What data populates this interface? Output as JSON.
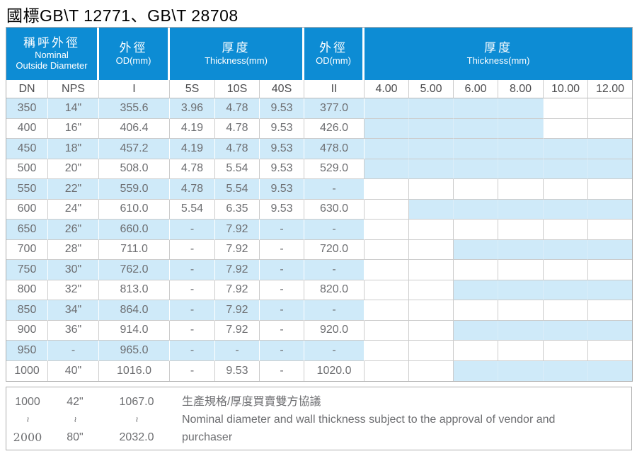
{
  "title": "國標GB\\T 12771、GB\\T 28708",
  "colors": {
    "header_blue": "#0d8cd4",
    "stripe_blue": "#cfeaf9",
    "grid_gray": "#cccccc",
    "text_gray": "#6d6e71"
  },
  "header": {
    "nominal_zh": "稱呼外徑",
    "nominal_en1": "Nominal",
    "nominal_en2": "Outside Diameter",
    "od1_zh": "外徑",
    "od1_en": "OD(mm)",
    "th1_zh": "厚度",
    "th1_en": "Thickness(mm)",
    "od2_zh": "外徑",
    "od2_en": "OD(mm)",
    "th2_zh": "厚度",
    "th2_en": "Thickness(mm)"
  },
  "subheader": [
    "DN",
    "NPS",
    "I",
    "5S",
    "10S",
    "40S",
    "II",
    "4.00",
    "5.00",
    "6.00",
    "8.00",
    "10.00",
    "12.00"
  ],
  "rows": [
    {
      "dn": "350",
      "nps": "14\"",
      "od1": "355.6",
      "t5s": "3.96",
      "t10s": "4.78",
      "t40s": "9.53",
      "od2": "377.0",
      "avail": [
        1,
        1,
        1,
        1,
        0,
        0
      ]
    },
    {
      "dn": "400",
      "nps": "16\"",
      "od1": "406.4",
      "t5s": "4.19",
      "t10s": "4.78",
      "t40s": "9.53",
      "od2": "426.0",
      "avail": [
        1,
        1,
        1,
        1,
        0,
        0
      ]
    },
    {
      "dn": "450",
      "nps": "18\"",
      "od1": "457.2",
      "t5s": "4.19",
      "t10s": "4.78",
      "t40s": "9.53",
      "od2": "478.0",
      "avail": [
        1,
        1,
        1,
        1,
        1,
        1
      ]
    },
    {
      "dn": "500",
      "nps": "20\"",
      "od1": "508.0",
      "t5s": "4.78",
      "t10s": "5.54",
      "t40s": "9.53",
      "od2": "529.0",
      "avail": [
        1,
        1,
        1,
        1,
        1,
        1
      ]
    },
    {
      "dn": "550",
      "nps": "22\"",
      "od1": "559.0",
      "t5s": "4.78",
      "t10s": "5.54",
      "t40s": "9.53",
      "od2": "-",
      "avail": [
        0,
        0,
        0,
        0,
        0,
        0
      ]
    },
    {
      "dn": "600",
      "nps": "24\"",
      "od1": "610.0",
      "t5s": "5.54",
      "t10s": "6.35",
      "t40s": "9.53",
      "od2": "630.0",
      "avail": [
        0,
        1,
        1,
        1,
        1,
        1
      ]
    },
    {
      "dn": "650",
      "nps": "26\"",
      "od1": "660.0",
      "t5s": "-",
      "t10s": "7.92",
      "t40s": "-",
      "od2": "-",
      "avail": [
        0,
        0,
        0,
        0,
        0,
        0
      ]
    },
    {
      "dn": "700",
      "nps": "28\"",
      "od1": "711.0",
      "t5s": "-",
      "t10s": "7.92",
      "t40s": "-",
      "od2": "720.0",
      "avail": [
        0,
        0,
        1,
        1,
        1,
        1
      ]
    },
    {
      "dn": "750",
      "nps": "30\"",
      "od1": "762.0",
      "t5s": "-",
      "t10s": "7.92",
      "t40s": "-",
      "od2": "-",
      "avail": [
        0,
        0,
        0,
        0,
        0,
        0
      ]
    },
    {
      "dn": "800",
      "nps": "32\"",
      "od1": "813.0",
      "t5s": "-",
      "t10s": "7.92",
      "t40s": "-",
      "od2": "820.0",
      "avail": [
        0,
        0,
        1,
        1,
        1,
        1
      ]
    },
    {
      "dn": "850",
      "nps": "34\"",
      "od1": "864.0",
      "t5s": "-",
      "t10s": "7.92",
      "t40s": "-",
      "od2": "-",
      "avail": [
        0,
        0,
        0,
        0,
        0,
        0
      ]
    },
    {
      "dn": "900",
      "nps": "36\"",
      "od1": "914.0",
      "t5s": "-",
      "t10s": "7.92",
      "t40s": "-",
      "od2": "920.0",
      "avail": [
        0,
        0,
        1,
        1,
        1,
        1
      ]
    },
    {
      "dn": "950",
      "nps": "-",
      "od1": "965.0",
      "t5s": "-",
      "t10s": "-",
      "t40s": "-",
      "od2": "-",
      "avail": [
        0,
        0,
        0,
        0,
        0,
        0
      ]
    },
    {
      "dn": "1000",
      "nps": "40\"",
      "od1": "1016.0",
      "t5s": "-",
      "t10s": "9.53",
      "t40s": "-",
      "od2": "1020.0",
      "avail": [
        0,
        0,
        1,
        1,
        1,
        1
      ]
    }
  ],
  "footer": {
    "dn": [
      "1000",
      "~",
      "2000"
    ],
    "nps": [
      "42\"",
      "~",
      "80\""
    ],
    "od": [
      "1067.0",
      "~",
      "2032.0"
    ],
    "note_zh": "生產規格/厚度買賣雙方協議",
    "note_en": "Nominal diameter and wall thickness subject to the approval of vendor and purchaser"
  }
}
